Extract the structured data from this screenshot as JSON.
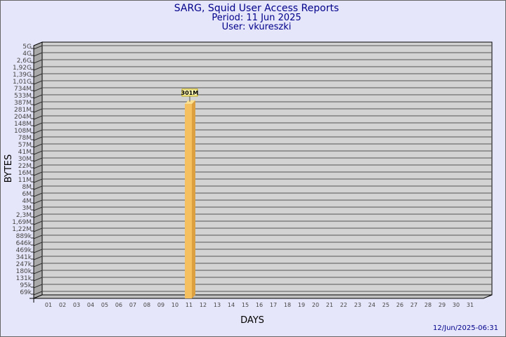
{
  "chart_data": {
    "type": "bar",
    "title": "SARG, Squid User Access Reports",
    "subtitle_lines": [
      "Period: 11 Jun 2025",
      "User: vkureszki"
    ],
    "xlabel": "DAYS",
    "ylabel": "BYTES",
    "y_scale": "log",
    "y_tick_labels": [
      "5G",
      "4G",
      "2,6G",
      "1,92G",
      "1,39G",
      "1,01G",
      "734M",
      "533M",
      "387M",
      "281M",
      "204M",
      "148M",
      "108M",
      "78M",
      "57M",
      "41M",
      "30M",
      "22M",
      "16M",
      "11M",
      "8M",
      "6M",
      "4M",
      "3M",
      "2,3M",
      "1,69M",
      "1,22M",
      "889k",
      "646k",
      "469k",
      "341k",
      "247k",
      "180k",
      "131k",
      "95k",
      "69k"
    ],
    "categories": [
      "01",
      "02",
      "03",
      "04",
      "05",
      "06",
      "07",
      "08",
      "09",
      "10",
      "11",
      "12",
      "13",
      "14",
      "15",
      "16",
      "17",
      "18",
      "19",
      "20",
      "21",
      "22",
      "23",
      "24",
      "25",
      "26",
      "27",
      "28",
      "29",
      "30",
      "31"
    ],
    "bars": [
      {
        "category": "11",
        "value_label": "301M"
      }
    ],
    "grid": true,
    "legend": "none",
    "timestamp": "12/Jun/2025-06:31",
    "colors": {
      "background": "#e6e6fa",
      "plot": "#d3d3d3",
      "bar": "#f5c060",
      "bar_side": "#dca040",
      "title": "#00008b"
    }
  }
}
